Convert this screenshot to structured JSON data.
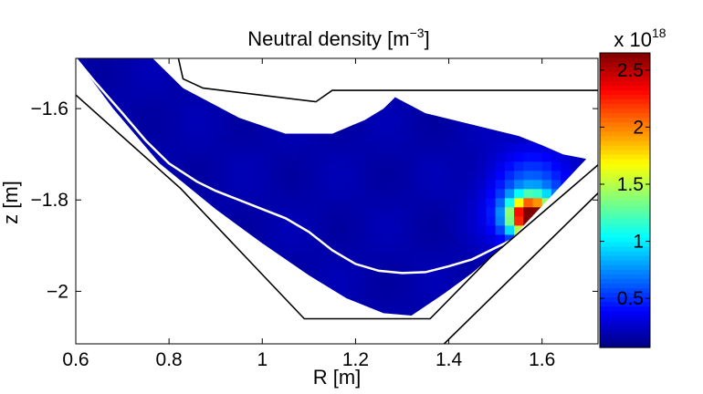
{
  "chart_data": {
    "type": "heatmap",
    "title": "Neutral density [m",
    "title_exponent": "−3",
    "title_suffix": "]",
    "xlabel": "R [m]",
    "ylabel": "z [m]",
    "xlim": [
      0.6,
      1.72
    ],
    "ylim": [
      -2.115,
      -1.49
    ],
    "x_ticks": [
      0.6,
      0.8,
      1,
      1.2,
      1.4,
      1.6
    ],
    "x_tick_labels": [
      "0.6",
      "0.8",
      "1",
      "1.2",
      "1.4",
      "1.6"
    ],
    "y_ticks": [
      -1.6,
      -1.8,
      -2
    ],
    "y_tick_labels": [
      "−1.6",
      "−1.8",
      "−2"
    ],
    "colorbar": {
      "min": 0.07,
      "max": 2.65,
      "ticks": [
        0.5,
        1,
        1.5,
        2,
        2.5
      ],
      "tick_labels": [
        "0.5",
        "1",
        "1.5",
        "2",
        "2.5"
      ],
      "multiplier_prefix": "x 10",
      "multiplier_exponent": "18",
      "colormap": "jet"
    },
    "grid": false,
    "separatrix_color": "#ffffff",
    "wall_color": "#000000",
    "background_density": 0.18,
    "density_peak": {
      "R": 1.575,
      "z": -1.835,
      "value": 2.6
    },
    "domain": {
      "upper_boundary": [
        [
          0.6,
          -1.49
        ],
        [
          0.765,
          -1.49
        ],
        [
          0.83,
          -1.555
        ],
        [
          0.95,
          -1.62
        ],
        [
          1.05,
          -1.655
        ],
        [
          1.15,
          -1.655
        ],
        [
          1.22,
          -1.625
        ],
        [
          1.26,
          -1.6
        ],
        [
          1.285,
          -1.575
        ],
        [
          1.35,
          -1.61
        ],
        [
          1.45,
          -1.635
        ],
        [
          1.55,
          -1.66
        ],
        [
          1.6,
          -1.68
        ],
        [
          1.645,
          -1.7
        ],
        [
          1.695,
          -1.71
        ]
      ],
      "lower_boundary": [
        [
          0.6,
          -1.49
        ],
        [
          0.68,
          -1.6
        ],
        [
          0.78,
          -1.72
        ],
        [
          0.9,
          -1.82
        ],
        [
          1.0,
          -1.895
        ],
        [
          1.1,
          -1.965
        ],
        [
          1.18,
          -2.015
        ],
        [
          1.26,
          -2.048
        ],
        [
          1.32,
          -2.053
        ],
        [
          1.39,
          -2.005
        ],
        [
          1.45,
          -1.96
        ],
        [
          1.52,
          -1.9
        ],
        [
          1.695,
          -1.71
        ]
      ]
    },
    "separatrix": [
      [
        0.6,
        -1.49
      ],
      [
        0.64,
        -1.54
      ],
      [
        0.7,
        -1.61
      ],
      [
        0.75,
        -1.67
      ],
      [
        0.8,
        -1.72
      ],
      [
        0.86,
        -1.76
      ],
      [
        0.9,
        -1.78
      ],
      [
        1.0,
        -1.82
      ],
      [
        1.05,
        -1.84
      ],
      [
        1.1,
        -1.87
      ],
      [
        1.15,
        -1.91
      ],
      [
        1.2,
        -1.94
      ],
      [
        1.25,
        -1.955
      ],
      [
        1.3,
        -1.96
      ],
      [
        1.35,
        -1.958
      ],
      [
        1.4,
        -1.945
      ],
      [
        1.45,
        -1.93
      ],
      [
        1.5,
        -1.905
      ],
      [
        1.53,
        -1.89
      ]
    ],
    "walls": [
      [
        [
          0.6,
          -1.57
        ],
        [
          0.825,
          -1.775
        ],
        [
          1.09,
          -2.06
        ],
        [
          1.36,
          -2.06
        ],
        [
          1.49,
          -1.925
        ],
        [
          1.735,
          -1.71
        ]
      ],
      [
        [
          1.39,
          -2.115
        ],
        [
          1.72,
          -1.785
        ]
      ],
      [
        [
          0.82,
          -1.49
        ],
        [
          0.83,
          -1.535
        ],
        [
          0.873,
          -1.555
        ],
        [
          1.115,
          -1.585
        ],
        [
          1.15,
          -1.56
        ],
        [
          1.72,
          -1.56
        ]
      ]
    ]
  }
}
